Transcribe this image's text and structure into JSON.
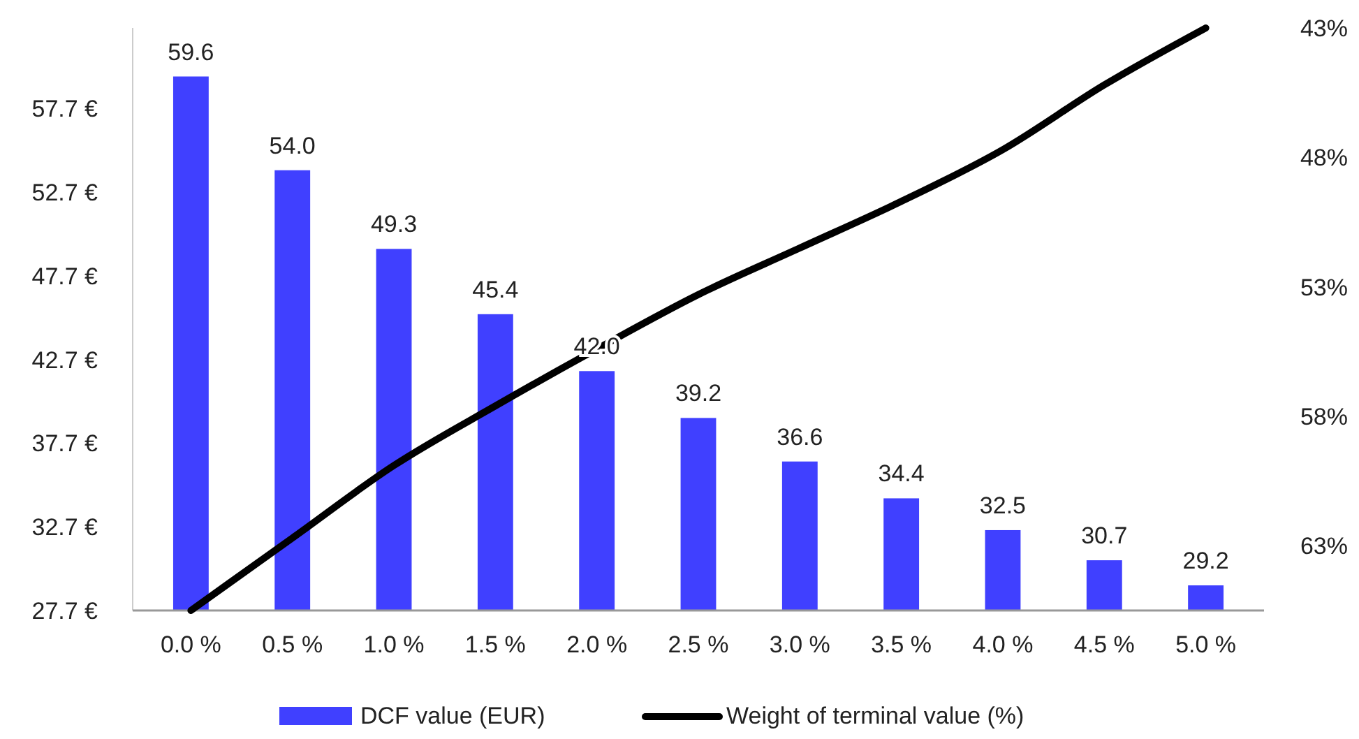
{
  "chart_data": {
    "type": "bar",
    "categories": [
      "0.0 %",
      "0.5 %",
      "1.0 %",
      "1.5 %",
      "2.0 %",
      "2.5 %",
      "3.0 %",
      "3.5 %",
      "4.0 %",
      "4.5 %",
      "5.0 %"
    ],
    "series": [
      {
        "name": "DCF value (EUR)",
        "color": "#4040ff",
        "values": [
          59.6,
          54.0,
          49.3,
          45.4,
          42.0,
          39.2,
          36.6,
          34.4,
          32.5,
          30.7,
          29.2
        ],
        "value_labels": [
          "59.6",
          "54.0",
          "49.3",
          "45.4",
          "42.0",
          "39.2",
          "36.6",
          "34.4",
          "32.5",
          "30.7",
          "29.2"
        ]
      },
      {
        "name": "Weight of terminal value (%)",
        "type": "line",
        "axis": "y2",
        "color": "#000000",
        "values": [
          65.5,
          62.7,
          59.9,
          57.6,
          55.4,
          53.3,
          51.5,
          49.7,
          47.7,
          45.2,
          43
        ]
      }
    ],
    "ylim": [
      27.7,
      62.5
    ],
    "yticks": [
      {
        "value": 27.7,
        "label": "27.7 €"
      },
      {
        "value": 32.7,
        "label": "32.7 €"
      },
      {
        "value": 37.7,
        "label": "37.7 €"
      },
      {
        "value": 42.7,
        "label": "42.7 €"
      },
      {
        "value": 47.7,
        "label": "47.7 €"
      },
      {
        "value": 52.7,
        "label": "52.7 €"
      },
      {
        "value": 57.7,
        "label": "57.7 €"
      }
    ],
    "y2lim": [
      65.5,
      43
    ],
    "y2ticks": [
      {
        "value": 43,
        "label": "43%"
      },
      {
        "value": 48,
        "label": "48%"
      },
      {
        "value": 53,
        "label": "53%"
      },
      {
        "value": 58,
        "label": "58%"
      },
      {
        "value": 63,
        "label": "63%"
      }
    ],
    "legend": "bottom",
    "grid": false,
    "marker": "none",
    "line_style": "solid"
  }
}
